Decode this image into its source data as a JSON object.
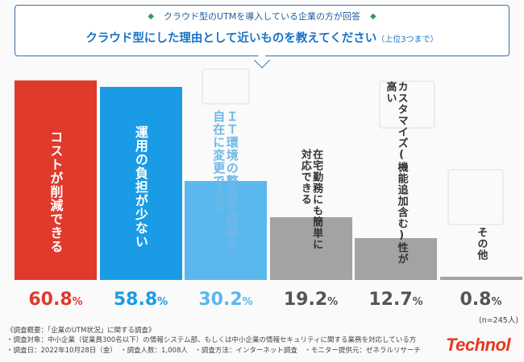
{
  "header": {
    "subtitle": "クラウド型のUTMを導入している企業の方が回答",
    "diamond": "◆",
    "question": "クラウド型にした理由として近いものを教えてください",
    "question_note": "（上位3つまで）"
  },
  "chart_data": {
    "type": "bar",
    "categories": [
      "コストが削減できる",
      "運用の負担が少ない",
      "ＩＴ環境の整備や規模を自在に変更できる",
      "在宅勤務にも簡単に対応できる",
      "カスタマイズ(機能追加含む)性が高い",
      "その他"
    ],
    "label_lines": [
      [
        "コストが削減できる"
      ],
      [
        "運用の負担が少ない"
      ],
      [
        "ＩＴ環境の整備や規模を",
        "自在に変更できる"
      ],
      [
        "在宅勤務にも簡単に",
        "対応できる"
      ],
      [
        "カスタマイズ(機能追加含む)性が",
        "高い"
      ],
      [
        "その他"
      ]
    ],
    "values": [
      60.8,
      58.8,
      30.2,
      19.2,
      12.7,
      0.8
    ],
    "value_labels": [
      "60.8",
      "58.8",
      "30.2",
      "19.2",
      "12.7",
      "0.8"
    ],
    "unit": "%",
    "colors": [
      "#e03a2b",
      "#1a9be6",
      "#5ab8ee",
      "#a3a3a3",
      "#a3a3a3",
      "#a3a3a3"
    ],
    "label_colors": [
      "#ffffff",
      "#ffffff",
      "#6fb8e8",
      "#333333",
      "#333333",
      "#333333"
    ],
    "value_colors": [
      "#e03a2b",
      "#1a9be6",
      "#5ab8ee",
      "#555555",
      "#555555",
      "#555555"
    ],
    "ylim": [
      0,
      60.8
    ],
    "title": "クラウド型にした理由として近いものを教えてください（上位3つまで）",
    "xlabel": "",
    "ylabel": ""
  },
  "n_note": "(n=245人)",
  "footnote": {
    "line1": "《調査概要：「企業のUTM状況」に関する調査》",
    "line2": "・調査対象：中小企業（従業員300名以下）の情報システム部、もしくは中小企業の情報セキュリティに関する業務を対応している方",
    "line3": "・調査日：2022年10月28日（金）　・調査人数：1,008人　・調査方法：インターネット調査　・モニター提供元：ゼネラルリサーチ"
  },
  "logo": "Technol"
}
